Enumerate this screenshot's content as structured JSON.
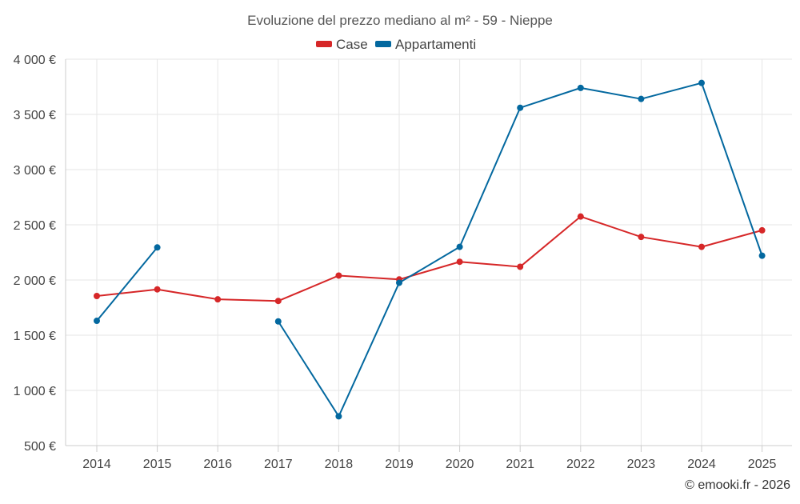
{
  "chart_data": {
    "type": "line",
    "title": "Evoluzione del prezzo mediano al m² - 59 - Nieppe",
    "categories": [
      "2014",
      "2015",
      "2016",
      "2017",
      "2018",
      "2019",
      "2020",
      "2021",
      "2022",
      "2023",
      "2024",
      "2025"
    ],
    "ylim": [
      500,
      4000
    ],
    "yticks": [
      500,
      1000,
      1500,
      2000,
      2500,
      3000,
      3500,
      4000
    ],
    "ytick_labels": [
      "500 €",
      "1 000 €",
      "1 500 €",
      "2 000 €",
      "2 500 €",
      "3 000 €",
      "3 500 €",
      "4 000 €"
    ],
    "xlabel": "",
    "ylabel": "",
    "grid": true,
    "legend_position": "top-center",
    "series": [
      {
        "name": "Case",
        "color": "#d62728",
        "values": [
          1855,
          1915,
          1825,
          1810,
          2040,
          2005,
          2165,
          2120,
          2575,
          2390,
          2300,
          2450
        ]
      },
      {
        "name": "Appartamenti",
        "color": "#03689f",
        "values": [
          1630,
          2295,
          null,
          1625,
          765,
          1975,
          2300,
          3560,
          3740,
          3640,
          3785,
          2220
        ]
      }
    ]
  },
  "credit": "© emooki.fr - 2026"
}
